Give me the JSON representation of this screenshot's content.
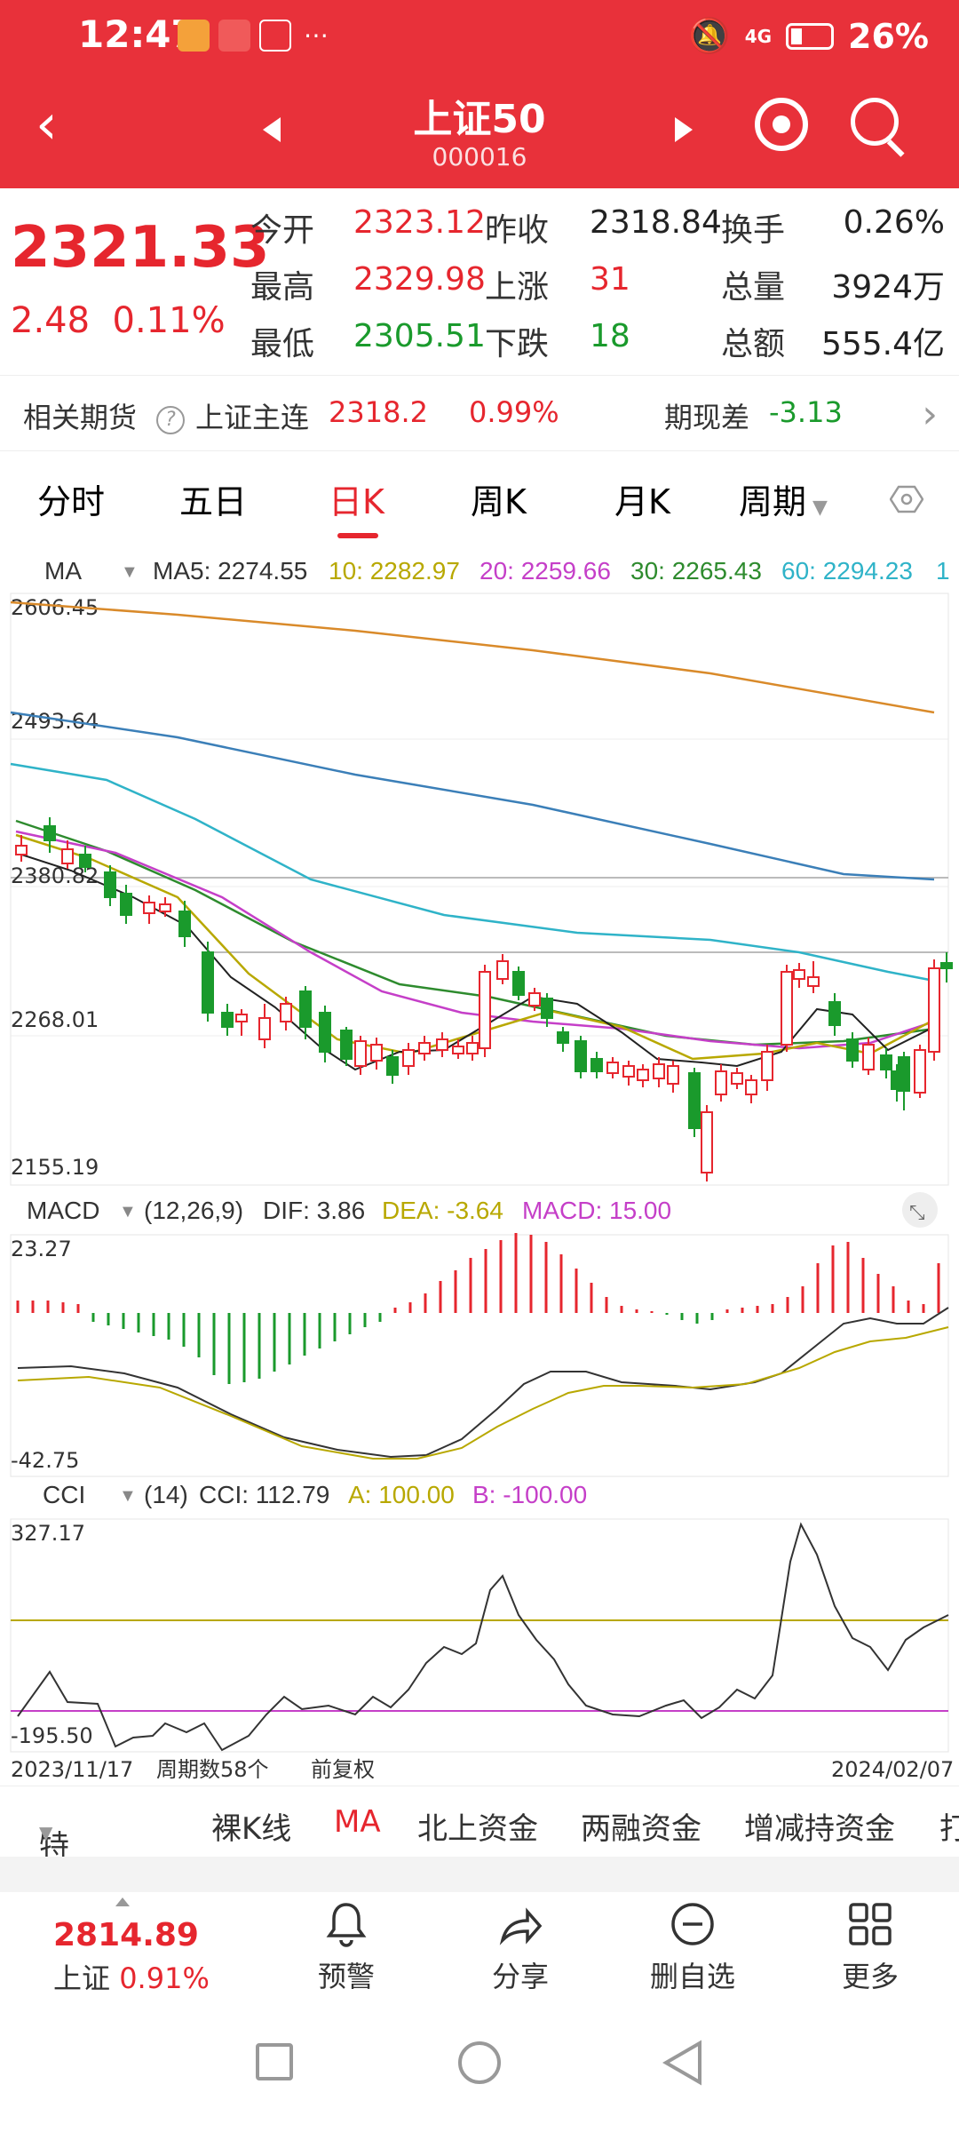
{
  "status": {
    "time": "12:47",
    "battery": "26%",
    "net": "4G"
  },
  "header": {
    "title": "上证50",
    "code": "000016"
  },
  "quote": {
    "price": "2321.33",
    "change": "2.48",
    "change_pct": "0.11%",
    "rows": [
      [
        {
          "l": "今开",
          "v": "2323.12",
          "c": "red"
        },
        {
          "l": "昨收",
          "v": "2318.84",
          "c": "dark"
        },
        {
          "l": "换手",
          "v": "0.26%",
          "c": "dark"
        }
      ],
      [
        {
          "l": "最高",
          "v": "2329.98",
          "c": "red"
        },
        {
          "l": "上涨",
          "v": "31",
          "c": "red"
        },
        {
          "l": "总量",
          "v": "3924万",
          "c": "dark"
        }
      ],
      [
        {
          "l": "最低",
          "v": "2305.51",
          "c": "green"
        },
        {
          "l": "下跌",
          "v": "18",
          "c": "green"
        },
        {
          "l": "总额",
          "v": "555.4亿",
          "c": "dark"
        }
      ]
    ]
  },
  "futures": {
    "label": "相关期货",
    "name": "上证主连",
    "value": "2318.2",
    "pct": "0.99%",
    "basis_label": "期现差",
    "basis": "-3.13"
  },
  "tabs": [
    "分时",
    "五日",
    "日K",
    "周K",
    "月K",
    "周期"
  ],
  "ma_bar": {
    "label": "MA",
    "ma5": "MA5: 2274.55",
    "ma10": "10: 2282.97",
    "ma20": "20: 2259.66",
    "ma30": "30: 2265.43",
    "ma60": "60: 2294.23",
    "ma_extra": "1"
  },
  "kchart": {
    "axis": [
      "2606.45",
      "2493.64",
      "2380.82",
      "2268.01",
      "2155.19"
    ]
  },
  "macd": {
    "label": "MACD",
    "params": "(12,26,9)",
    "dif": "DIF: 3.86",
    "dea": "DEA: -3.64",
    "macd": "MACD: 15.00",
    "top": "23.27",
    "bottom": "-42.75"
  },
  "cci": {
    "label": "CCI",
    "params": "(14)",
    "cci": "CCI: 112.79",
    "a": "A: 100.00",
    "b": "B: -100.00",
    "top": "327.17",
    "bottom": "-195.50"
  },
  "footer_axis": {
    "start": "2023/11/17",
    "count": "周期数58个",
    "adj": "前复权",
    "end": "2024/02/07"
  },
  "features": [
    "特色",
    "裸K线",
    "MA",
    "北上资金",
    "两融资金",
    "增减持资金",
    "打"
  ],
  "bottom": {
    "idx_value": "2814.89",
    "idx_label": "上证",
    "idx_pct": "0.91%",
    "items": [
      "预警",
      "分享",
      "删自选",
      "更多"
    ]
  },
  "colors": {
    "red": "#e6262e",
    "green": "#1a9a2c",
    "ma5": "#222",
    "ma10": "#b8a800",
    "ma20": "#c53fc8",
    "ma30": "#2e8b2e",
    "ma60": "#2fb3c8"
  }
}
